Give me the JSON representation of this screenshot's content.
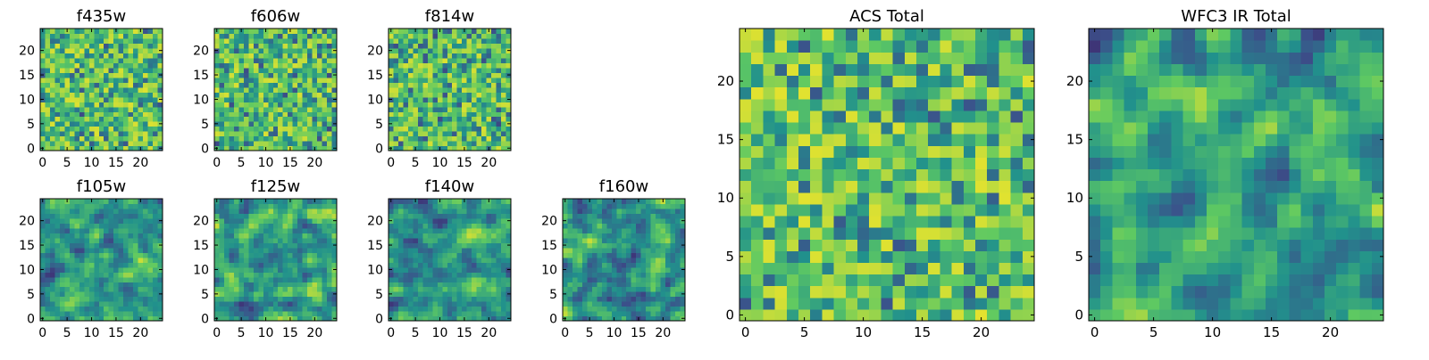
{
  "figure_title": "",
  "colormap": {
    "name": "viridis",
    "stops": [
      "#440154",
      "#3b528b",
      "#21918c",
      "#5ec962",
      "#fde725"
    ]
  },
  "axis_color": "#000000",
  "chart_data": [
    {
      "type": "heatmap",
      "title": "f435w",
      "grid_size": [
        25,
        25
      ],
      "xlim": [
        0,
        24
      ],
      "ylim": [
        0,
        24
      ],
      "xticks": [
        0,
        5,
        10,
        15,
        20
      ],
      "yticks": [
        0,
        5,
        10,
        15,
        20
      ],
      "xtick_labels": [
        "0",
        "5",
        "10",
        "15",
        "20"
      ],
      "ytick_labels": [
        "0",
        "5",
        "10",
        "15",
        "20"
      ],
      "pixel_values": "random noise, normalized 0-1 (not individually legible)",
      "seed": 435,
      "mean_level": 0.72,
      "smoothness": 0
    },
    {
      "type": "heatmap",
      "title": "f606w",
      "grid_size": [
        25,
        25
      ],
      "xlim": [
        0,
        24
      ],
      "ylim": [
        0,
        24
      ],
      "xticks": [
        0,
        5,
        10,
        15,
        20
      ],
      "yticks": [
        0,
        5,
        10,
        15,
        20
      ],
      "xtick_labels": [
        "0",
        "5",
        "10",
        "15",
        "20"
      ],
      "ytick_labels": [
        "0",
        "5",
        "10",
        "15",
        "20"
      ],
      "pixel_values": "random noise, normalized 0-1 (not individually legible)",
      "seed": 606,
      "mean_level": 0.7,
      "smoothness": 0
    },
    {
      "type": "heatmap",
      "title": "f814w",
      "grid_size": [
        25,
        25
      ],
      "xlim": [
        0,
        24
      ],
      "ylim": [
        0,
        24
      ],
      "xticks": [
        0,
        5,
        10,
        15,
        20
      ],
      "yticks": [
        0,
        5,
        10,
        15,
        20
      ],
      "xtick_labels": [
        "0",
        "5",
        "10",
        "15",
        "20"
      ],
      "ytick_labels": [
        "0",
        "5",
        "10",
        "15",
        "20"
      ],
      "pixel_values": "random noise, normalized 0-1 (not individually legible)",
      "seed": 814,
      "mean_level": 0.7,
      "smoothness": 0
    },
    {
      "type": "heatmap",
      "title": "f105w",
      "grid_size": [
        25,
        25
      ],
      "xlim": [
        0,
        24
      ],
      "ylim": [
        0,
        24
      ],
      "xticks": [
        0,
        5,
        10,
        15,
        20
      ],
      "yticks": [
        0,
        5,
        10,
        15,
        20
      ],
      "xtick_labels": [
        "0",
        "5",
        "10",
        "15",
        "20"
      ],
      "ytick_labels": [
        "0",
        "5",
        "10",
        "15",
        "20"
      ],
      "pixel_values": "correlated noise, normalized 0-1 (not individually legible)",
      "seed": 105,
      "mean_level": 0.62,
      "smoothness": 1
    },
    {
      "type": "heatmap",
      "title": "f125w",
      "grid_size": [
        25,
        25
      ],
      "xlim": [
        0,
        24
      ],
      "ylim": [
        0,
        24
      ],
      "xticks": [
        0,
        5,
        10,
        15,
        20
      ],
      "yticks": [
        0,
        5,
        10,
        15,
        20
      ],
      "xtick_labels": [
        "0",
        "5",
        "10",
        "15",
        "20"
      ],
      "ytick_labels": [
        "0",
        "5",
        "10",
        "15",
        "20"
      ],
      "pixel_values": "correlated noise, normalized 0-1 (not individually legible)",
      "seed": 125,
      "mean_level": 0.62,
      "smoothness": 1
    },
    {
      "type": "heatmap",
      "title": "f140w",
      "grid_size": [
        25,
        25
      ],
      "xlim": [
        0,
        24
      ],
      "ylim": [
        0,
        24
      ],
      "xticks": [
        0,
        5,
        10,
        15,
        20
      ],
      "yticks": [
        0,
        5,
        10,
        15,
        20
      ],
      "xtick_labels": [
        "0",
        "5",
        "10",
        "15",
        "20"
      ],
      "ytick_labels": [
        "0",
        "5",
        "10",
        "15",
        "20"
      ],
      "pixel_values": "correlated noise, normalized 0-1 (not individually legible)",
      "seed": 140,
      "mean_level": 0.62,
      "smoothness": 1
    },
    {
      "type": "heatmap",
      "title": "f160w",
      "grid_size": [
        25,
        25
      ],
      "xlim": [
        0,
        24
      ],
      "ylim": [
        0,
        24
      ],
      "xticks": [
        0,
        5,
        10,
        15,
        20
      ],
      "yticks": [
        0,
        5,
        10,
        15,
        20
      ],
      "xtick_labels": [
        "0",
        "5",
        "10",
        "15",
        "20"
      ],
      "ytick_labels": [
        "0",
        "5",
        "10",
        "15",
        "20"
      ],
      "pixel_values": "correlated noise, normalized 0-1 (not individually legible)",
      "seed": 160,
      "mean_level": 0.62,
      "smoothness": 1
    },
    {
      "type": "heatmap",
      "title": "ACS Total",
      "grid_size": [
        25,
        25
      ],
      "xlim": [
        0,
        24
      ],
      "ylim": [
        0,
        24
      ],
      "xticks": [
        0,
        5,
        10,
        15,
        20
      ],
      "yticks": [
        0,
        5,
        10,
        15,
        20
      ],
      "xtick_labels": [
        "0",
        "5",
        "10",
        "15",
        "20"
      ],
      "ytick_labels": [
        "0",
        "5",
        "10",
        "15",
        "20"
      ],
      "pixel_values": "random noise, normalized 0-1 (not individually legible)",
      "seed": 9001,
      "mean_level": 0.74,
      "smoothness": 0
    },
    {
      "type": "heatmap",
      "title": "WFC3 IR Total",
      "grid_size": [
        25,
        25
      ],
      "xlim": [
        0,
        24
      ],
      "ylim": [
        0,
        24
      ],
      "xticks": [
        0,
        5,
        10,
        15,
        20
      ],
      "yticks": [
        0,
        5,
        10,
        15,
        20
      ],
      "xtick_labels": [
        "0",
        "5",
        "10",
        "15",
        "20"
      ],
      "ytick_labels": [
        "0",
        "5",
        "10",
        "15",
        "20"
      ],
      "pixel_values": "correlated noise, normalized 0-1 (not individually legible)",
      "seed": 9002,
      "mean_level": 0.6,
      "smoothness": 1
    }
  ]
}
